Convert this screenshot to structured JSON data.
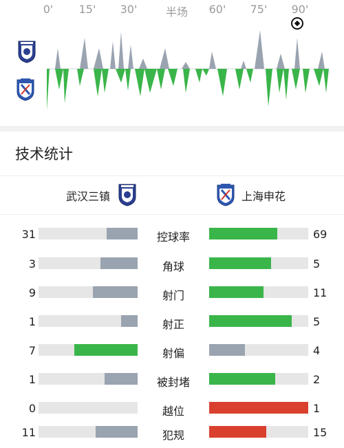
{
  "timeline": {
    "ticks": [
      "0'",
      "15'",
      "30'",
      "半场",
      "60'",
      "75'",
      "90'"
    ],
    "goal_icon": "soccer-ball-icon",
    "home_logo_icon": "wuhan-three-towns-crest-icon",
    "away_logo_icon": "shanghai-shenhua-crest-icon",
    "colors": {
      "home": "#9aa3b0",
      "away": "#3ab54a"
    }
  },
  "section": {
    "title": "技术统计"
  },
  "teams": {
    "home": {
      "name": "武汉三镇",
      "icon": "wuhan-three-towns-crest-icon"
    },
    "away": {
      "name": "上海申花",
      "icon": "shanghai-shenhua-crest-icon"
    }
  },
  "stats": [
    {
      "label": "控球率",
      "home": "31",
      "away": "69",
      "home_frac": 0.31,
      "away_frac": 0.69,
      "home_color": "#9aa3b0",
      "away_color": "#3ab54a"
    },
    {
      "label": "角球",
      "home": "3",
      "away": "5",
      "home_frac": 0.375,
      "away_frac": 0.625,
      "home_color": "#9aa3b0",
      "away_color": "#3ab54a"
    },
    {
      "label": "射门",
      "home": "9",
      "away": "11",
      "home_frac": 0.45,
      "away_frac": 0.55,
      "home_color": "#9aa3b0",
      "away_color": "#3ab54a"
    },
    {
      "label": "射正",
      "home": "1",
      "away": "5",
      "home_frac": 0.167,
      "away_frac": 0.833,
      "home_color": "#9aa3b0",
      "away_color": "#3ab54a"
    },
    {
      "label": "射偏",
      "home": "7",
      "away": "4",
      "home_frac": 0.636,
      "away_frac": 0.364,
      "home_color": "#3ab54a",
      "away_color": "#9aa3b0"
    },
    {
      "label": "被封堵",
      "home": "1",
      "away": "2",
      "home_frac": 0.333,
      "away_frac": 0.667,
      "home_color": "#9aa3b0",
      "away_color": "#3ab54a"
    },
    {
      "label": "越位",
      "home": "0",
      "away": "1",
      "home_frac": 0.0,
      "away_frac": 1.0,
      "home_color": "#9aa3b0",
      "away_color": "#d9412e"
    },
    {
      "label": "犯规",
      "home": "11",
      "away": "15",
      "home_frac": 0.423,
      "away_frac": 0.577,
      "home_color": "#9aa3b0",
      "away_color": "#d9412e"
    }
  ]
}
